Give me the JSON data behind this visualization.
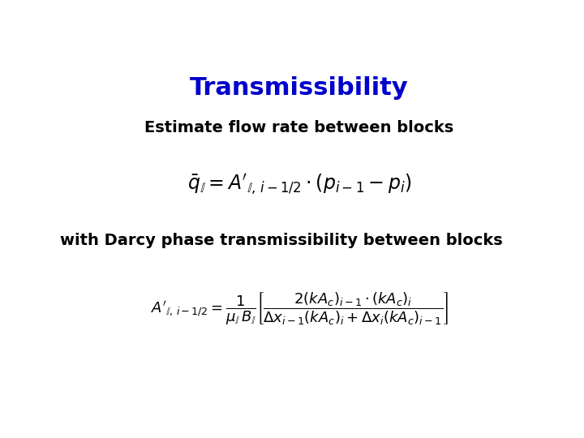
{
  "title": "Transmissibility",
  "title_color": "#0000CC",
  "title_fontsize": 22,
  "subtitle1": "Estimate flow rate between blocks",
  "subtitle1_fontsize": 14,
  "subtitle2": "with Darcy phase transmissibility between blocks",
  "subtitle2_fontsize": 14,
  "eq1_fontsize": 17,
  "eq2_fontsize": 13,
  "background": "#ffffff"
}
